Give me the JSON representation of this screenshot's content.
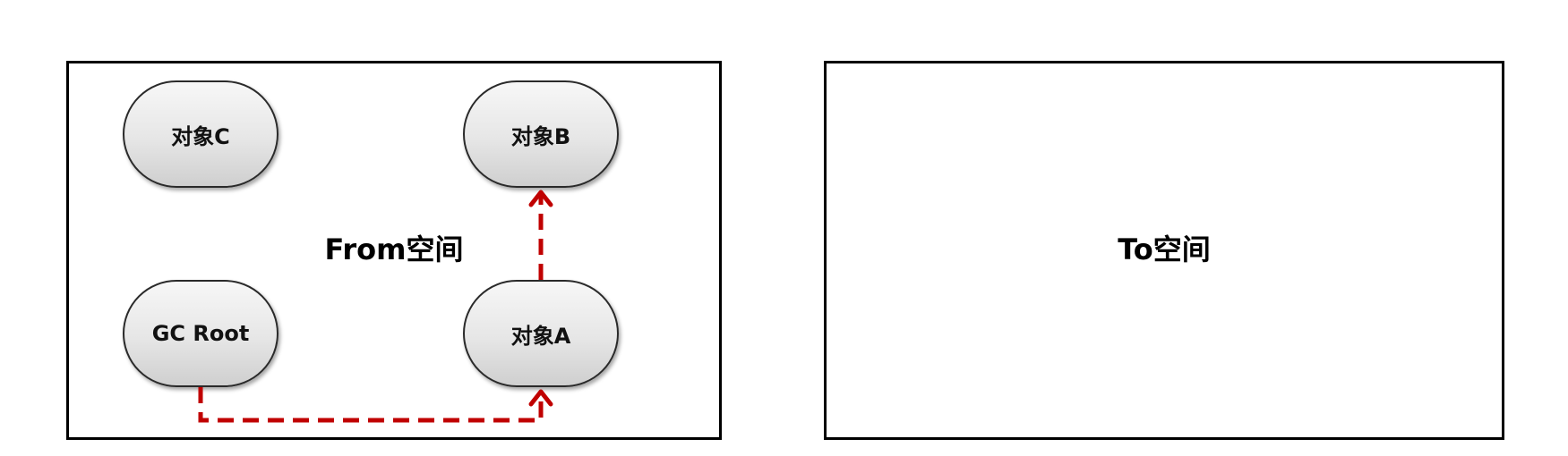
{
  "spaces": {
    "from_label": "From空间",
    "to_label": "To空间"
  },
  "nodes": {
    "object_c": "对象C",
    "object_b": "对象B",
    "gc_root": "GC Root",
    "object_a": "对象A"
  },
  "colors": {
    "arrow": "#c00000",
    "border": "#000000"
  }
}
